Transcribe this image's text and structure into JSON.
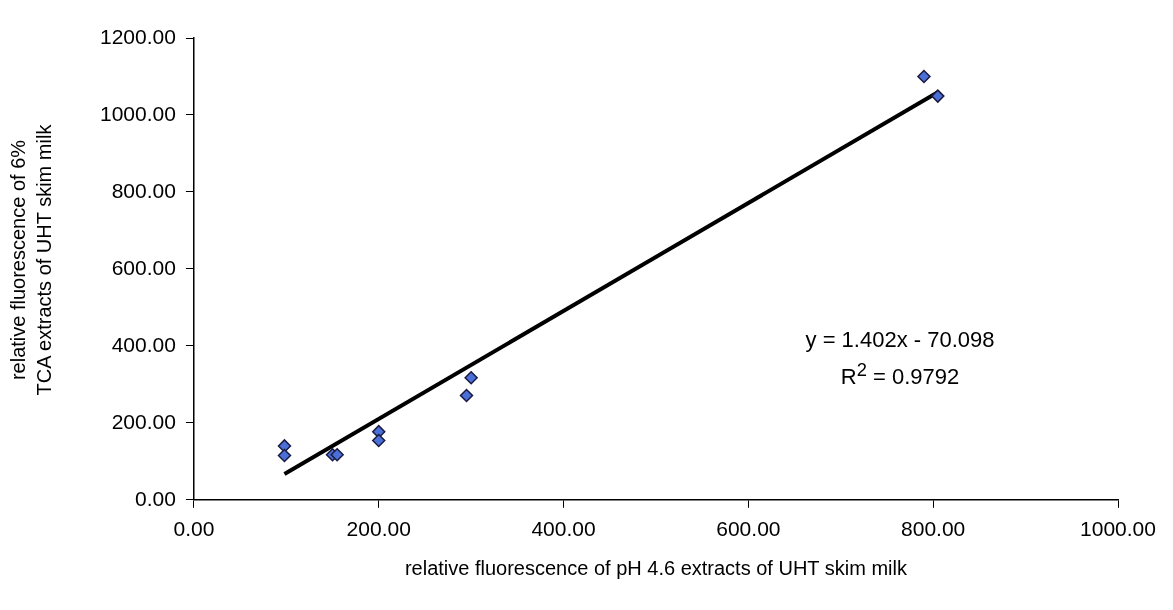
{
  "chart_data": {
    "type": "scatter",
    "xlabel": "relative fluorescence of pH 4.6 extracts of UHT skim milk",
    "ylabel": "relative fluorescence of 6% TCA extracts of UHT skim milk",
    "series": [
      {
        "color": "#4a6fd6",
        "x": [
          98,
          98,
          150,
          155,
          200,
          200,
          295,
          300,
          790,
          805
        ],
        "values": [
          140,
          115,
          117,
          117,
          177,
          154,
          271,
          317,
          1100,
          1049
        ],
        "marker": "diamond"
      },
      {
        "type": "line",
        "color": "#000000",
        "x": [
          98,
          805
        ],
        "values": [
          67,
          1059
        ],
        "marker": "none",
        "line_style": "solid"
      }
    ],
    "xlim": [
      0,
      1000
    ],
    "ylim": [
      0,
      1200
    ],
    "xticks": [
      {
        "value": 0,
        "label": "0.00"
      },
      {
        "value": 200,
        "label": "200.00"
      },
      {
        "value": 400,
        "label": "400.00"
      },
      {
        "value": 600,
        "label": "600.00"
      },
      {
        "value": 800,
        "label": "800.00"
      },
      {
        "value": 1000,
        "label": "1000.00"
      }
    ],
    "yticks": [
      {
        "value": 0,
        "label": "0.00"
      },
      {
        "value": 200,
        "label": "200.00"
      },
      {
        "value": 400,
        "label": "400.00"
      },
      {
        "value": 600,
        "label": "600.00"
      },
      {
        "value": 800,
        "label": "800.00"
      },
      {
        "value": 1000,
        "label": "1000.00"
      },
      {
        "value": 1200,
        "label": "1200.00"
      }
    ],
    "annotations": [
      "y = 1.402x - 70.098",
      "R$^{2}$ = 0.9792"
    ],
    "grid": false,
    "legend": false
  }
}
